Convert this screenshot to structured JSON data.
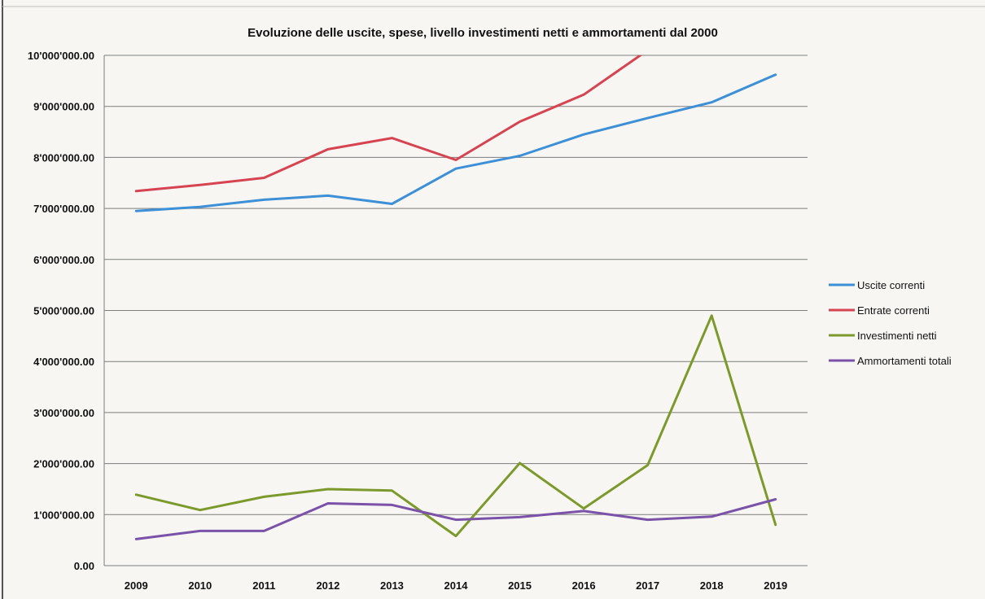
{
  "chart_data": {
    "type": "line",
    "title": "Evoluzione delle uscite, spese, livello investimenti netti e ammortamenti dal 2000",
    "xlabel": "",
    "ylabel": "",
    "categories": [
      "2009",
      "2010",
      "2011",
      "2012",
      "2013",
      "2014",
      "2015",
      "2016",
      "2017",
      "2018",
      "2019"
    ],
    "ylim": [
      0,
      10000000
    ],
    "yticks": [
      0,
      1000000,
      2000000,
      3000000,
      4000000,
      5000000,
      6000000,
      7000000,
      8000000,
      9000000,
      10000000
    ],
    "ytick_labels": [
      "0.00",
      "1'000'000.00",
      "2'000'000.00",
      "3'000'000.00",
      "4'000'000.00",
      "5'000'000.00",
      "6'000'000.00",
      "7'000'000.00",
      "8'000'000.00",
      "9'000'000.00",
      "10'000'000.00"
    ],
    "grid": true,
    "legend_position": "right",
    "series": [
      {
        "name": "Uscite correnti",
        "color": "#3d8fd6",
        "values": [
          6950000,
          7030000,
          7170000,
          7250000,
          7090000,
          7780000,
          8030000,
          8450000,
          8770000,
          9080000,
          9620000
        ]
      },
      {
        "name": "Entrate correnti",
        "color": "#d64451",
        "values": [
          7340000,
          7460000,
          7600000,
          8160000,
          8380000,
          7950000,
          8700000,
          9230000,
          10100000,
          null,
          null
        ]
      },
      {
        "name": "Investimenti netti",
        "color": "#7c9a2c",
        "values": [
          1390000,
          1090000,
          1350000,
          1500000,
          1470000,
          580000,
          2010000,
          1120000,
          1970000,
          4900000,
          800000
        ]
      },
      {
        "name": "Ammortamenti totali",
        "color": "#7a52a8",
        "values": [
          520000,
          680000,
          680000,
          1220000,
          1190000,
          900000,
          950000,
          1070000,
          900000,
          960000,
          1300000
        ]
      }
    ]
  }
}
